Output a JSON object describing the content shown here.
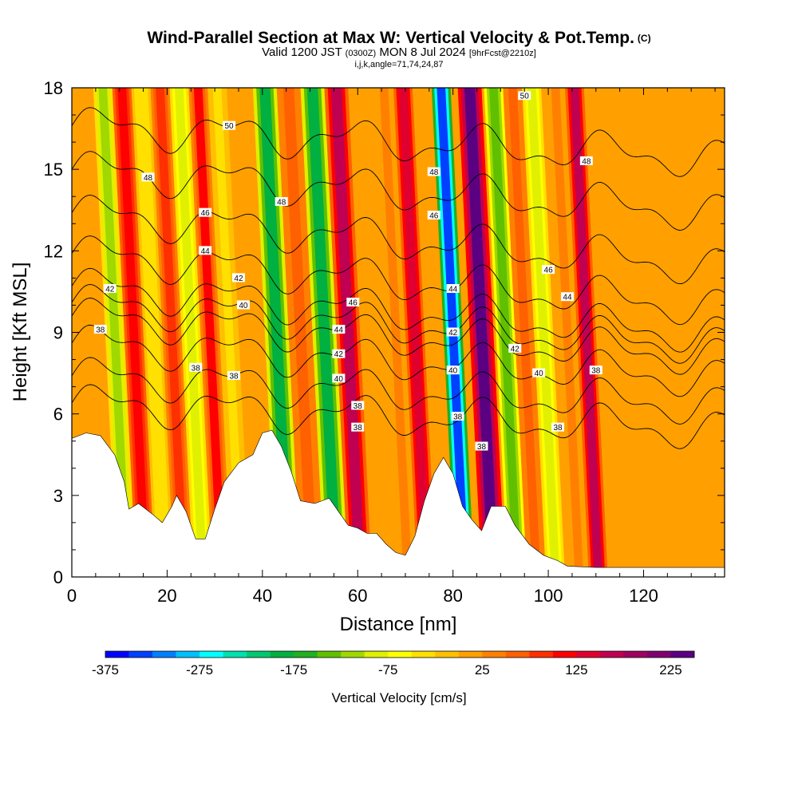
{
  "title": {
    "main": "Wind-Parallel Section at Max W: Vertical Velocity & Pot.Temp.",
    "copyright": "(C)",
    "valid_prefix": "Valid 1200 JST",
    "valid_utc": "(0300Z)",
    "valid_date": "MON 8 Jul 2024",
    "forecast": "[9hrFcst@2210z]",
    "indices": "i,j,k,angle=71,74,24,87"
  },
  "chart_data": {
    "type": "heatmap",
    "xlabel": "Distance [nm]",
    "ylabel": "Height [Kft MSL]",
    "xlim": [
      0,
      137
    ],
    "ylim": [
      0,
      18
    ],
    "x_ticks": [
      "0",
      "20",
      "40",
      "60",
      "80",
      "100",
      "120"
    ],
    "y_ticks": [
      "0",
      "3",
      "6",
      "9",
      "12",
      "15",
      "18"
    ],
    "colorbar": {
      "label": "Vertical Velocity [cm/s]",
      "tick_labels": [
        "-375",
        "-275",
        "-175",
        "-75",
        "25",
        "125",
        "225"
      ],
      "levels_min": -375,
      "levels_step": 25,
      "colors": [
        "#0000ff",
        "#0040ff",
        "#0080ff",
        "#00c0ff",
        "#00ffff",
        "#00e0b0",
        "#00c870",
        "#00b040",
        "#20b020",
        "#60c000",
        "#a0d800",
        "#e0f000",
        "#ffff00",
        "#ffe000",
        "#ffc000",
        "#ffa000",
        "#ff8000",
        "#ff6000",
        "#ff3000",
        "#ff0000",
        "#e00030",
        "#c00050",
        "#a00060",
        "#800070",
        "#5a0080"
      ]
    },
    "columns_w": [
      {
        "x": 5,
        "w": 0
      },
      {
        "x": 9,
        "w": -110
      },
      {
        "x": 13,
        "w": 120
      },
      {
        "x": 17,
        "w": -40
      },
      {
        "x": 21,
        "w": 90
      },
      {
        "x": 25,
        "w": -90
      },
      {
        "x": 29,
        "w": 100
      },
      {
        "x": 33,
        "w": -30
      },
      {
        "x": 38,
        "w": 20
      },
      {
        "x": 43,
        "w": -180
      },
      {
        "x": 48,
        "w": 60
      },
      {
        "x": 53,
        "w": -200
      },
      {
        "x": 58,
        "w": 160
      },
      {
        "x": 63,
        "w": 20
      },
      {
        "x": 68,
        "w": 30
      },
      {
        "x": 72,
        "w": 140
      },
      {
        "x": 76,
        "w": 10
      },
      {
        "x": 80,
        "w": -350
      },
      {
        "x": 86,
        "w": 240
      },
      {
        "x": 91,
        "w": -150
      },
      {
        "x": 95,
        "w": 60
      },
      {
        "x": 99,
        "w": -80
      },
      {
        "x": 104,
        "w": 30
      },
      {
        "x": 108,
        "w": 150
      },
      {
        "x": 112,
        "w": 10
      },
      {
        "x": 118,
        "w": 0
      },
      {
        "x": 125,
        "w": 20
      },
      {
        "x": 132,
        "w": 10
      }
    ],
    "terrain_kft": [
      [
        0,
        5.1
      ],
      [
        3,
        5.3
      ],
      [
        6,
        5.2
      ],
      [
        9,
        4.5
      ],
      [
        11,
        3.5
      ],
      [
        12,
        2.5
      ],
      [
        14,
        2.7
      ],
      [
        17,
        2.3
      ],
      [
        19,
        2.0
      ],
      [
        21,
        2.6
      ],
      [
        22,
        3.0
      ],
      [
        24,
        2.4
      ],
      [
        26,
        1.4
      ],
      [
        28,
        1.4
      ],
      [
        30,
        2.5
      ],
      [
        32,
        3.5
      ],
      [
        35,
        4.2
      ],
      [
        38,
        4.5
      ],
      [
        40,
        5.3
      ],
      [
        42,
        5.4
      ],
      [
        44,
        4.8
      ],
      [
        46,
        3.9
      ],
      [
        48,
        2.8
      ],
      [
        51,
        2.7
      ],
      [
        54,
        2.9
      ],
      [
        56,
        2.4
      ],
      [
        58,
        1.9
      ],
      [
        60,
        1.8
      ],
      [
        62,
        1.6
      ],
      [
        64,
        1.6
      ],
      [
        66,
        1.2
      ],
      [
        68,
        0.9
      ],
      [
        70,
        0.8
      ],
      [
        72,
        1.5
      ],
      [
        74,
        2.8
      ],
      [
        76,
        3.8
      ],
      [
        78,
        4.4
      ],
      [
        80,
        3.8
      ],
      [
        82,
        2.6
      ],
      [
        84,
        2.1
      ],
      [
        86,
        1.7
      ],
      [
        88,
        2.6
      ],
      [
        91,
        2.6
      ],
      [
        93,
        1.9
      ],
      [
        96,
        1.2
      ],
      [
        99,
        0.8
      ],
      [
        102,
        0.6
      ],
      [
        104,
        0.4
      ],
      [
        110,
        0.35
      ],
      [
        120,
        0.35
      ],
      [
        137,
        0.35
      ]
    ],
    "theta_contours": [
      {
        "label": "38",
        "base_kft": 8.6,
        "tilt_kft": 1.3
      },
      {
        "label": "38",
        "base_kft": 7.4,
        "tilt_kft": 1.1
      },
      {
        "label": "38",
        "base_kft": 6.4,
        "tilt_kft": 1.0
      },
      {
        "label": "40",
        "base_kft": 9.6,
        "tilt_kft": 1.5
      },
      {
        "label": "40",
        "base_kft": 10.1,
        "tilt_kft": 1.6
      },
      {
        "label": "42",
        "base_kft": 10.7,
        "tilt_kft": 1.8
      },
      {
        "label": "44",
        "base_kft": 11.9,
        "tilt_kft": 2.0
      },
      {
        "label": "46",
        "base_kft": 13.4,
        "tilt_kft": 2.0
      },
      {
        "label": "48",
        "base_kft": 15.0,
        "tilt_kft": 1.6
      },
      {
        "label": "50",
        "base_kft": 16.6,
        "tilt_kft": 1.2
      }
    ],
    "contour_labels": [
      {
        "text": "50",
        "x": 33,
        "y": 16.6
      },
      {
        "text": "50",
        "x": 95,
        "y": 17.7
      },
      {
        "text": "48",
        "x": 16,
        "y": 14.7
      },
      {
        "text": "48",
        "x": 44,
        "y": 13.8
      },
      {
        "text": "48",
        "x": 76,
        "y": 14.9
      },
      {
        "text": "48",
        "x": 108,
        "y": 15.3
      },
      {
        "text": "46",
        "x": 28,
        "y": 13.4
      },
      {
        "text": "46",
        "x": 76,
        "y": 13.3
      },
      {
        "text": "46",
        "x": 59,
        "y": 10.1
      },
      {
        "text": "46",
        "x": 100,
        "y": 11.3
      },
      {
        "text": "44",
        "x": 28,
        "y": 12.0
      },
      {
        "text": "44",
        "x": 56,
        "y": 9.1
      },
      {
        "text": "44",
        "x": 80,
        "y": 10.6
      },
      {
        "text": "44",
        "x": 104,
        "y": 10.3
      },
      {
        "text": "42",
        "x": 8,
        "y": 10.6
      },
      {
        "text": "42",
        "x": 35,
        "y": 11.0
      },
      {
        "text": "42",
        "x": 56,
        "y": 8.2
      },
      {
        "text": "42",
        "x": 80,
        "y": 9.0
      },
      {
        "text": "42",
        "x": 93,
        "y": 8.4
      },
      {
        "text": "40",
        "x": 36,
        "y": 10.0
      },
      {
        "text": "40",
        "x": 56,
        "y": 7.3
      },
      {
        "text": "40",
        "x": 80,
        "y": 7.6
      },
      {
        "text": "40",
        "x": 98,
        "y": 7.5
      },
      {
        "text": "38",
        "x": 6,
        "y": 9.1
      },
      {
        "text": "38",
        "x": 26,
        "y": 7.7
      },
      {
        "text": "38",
        "x": 34,
        "y": 7.4
      },
      {
        "text": "38",
        "x": 60,
        "y": 6.3
      },
      {
        "text": "38",
        "x": 60,
        "y": 5.5
      },
      {
        "text": "38",
        "x": 81,
        "y": 5.9
      },
      {
        "text": "38",
        "x": 86,
        "y": 4.8
      },
      {
        "text": "38",
        "x": 102,
        "y": 5.5
      },
      {
        "text": "38",
        "x": 110,
        "y": 7.6
      }
    ]
  }
}
